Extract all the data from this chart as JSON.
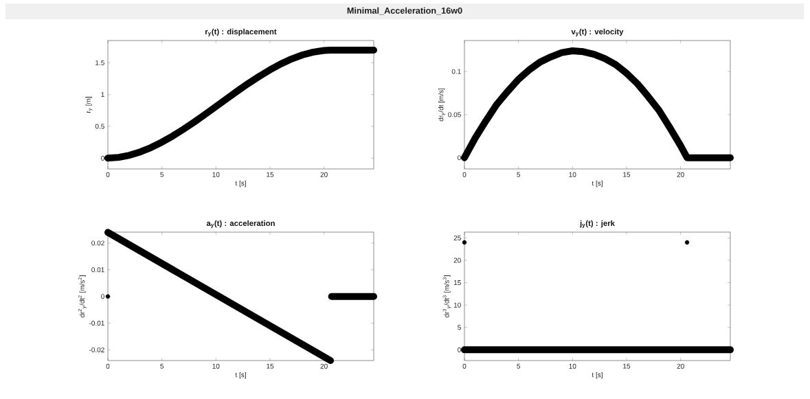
{
  "chart_data": [
    {
      "type": "other",
      "title": "Minimal_Acceleration_16w0"
    },
    {
      "type": "line",
      "title": "r$_{y}$(t) : displacement",
      "xlabel": "t [s]",
      "ylabel": "r$_{y}$ [m]",
      "xlim": [
        0,
        24.6
      ],
      "ylim": [
        -0.17,
        1.85
      ],
      "xticks": [
        0,
        5,
        10,
        15,
        20
      ],
      "yticks": [
        0,
        0.5,
        1,
        1.5
      ],
      "series": [
        {
          "color": "#000000",
          "x": [
            0,
            1,
            2,
            3,
            4,
            5,
            6,
            7,
            8,
            9,
            10,
            11,
            12,
            13,
            14,
            15,
            16,
            17,
            18,
            19,
            20,
            20.6,
            24.6
          ],
          "values": [
            0,
            0.012,
            0.045,
            0.098,
            0.167,
            0.252,
            0.348,
            0.455,
            0.569,
            0.689,
            0.812,
            0.935,
            1.057,
            1.175,
            1.286,
            1.389,
            1.481,
            1.56,
            1.623,
            1.668,
            1.693,
            1.698,
            1.698
          ]
        }
      ]
    },
    {
      "type": "line",
      "title": "v$_{y}$(t) : velocity",
      "xlabel": "t [s]",
      "ylabel": "dr$_{y}$/dt [m/s]",
      "xlim": [
        0,
        24.6
      ],
      "ylim": [
        -0.013,
        0.136
      ],
      "xticks": [
        0,
        5,
        10,
        15,
        20
      ],
      "yticks": [
        0,
        0.05,
        0.1
      ],
      "series": [
        {
          "color": "#000000",
          "x": [
            0,
            1,
            2,
            3,
            4,
            5,
            6,
            7,
            8,
            9,
            10,
            11,
            12,
            13,
            14,
            15,
            16,
            17,
            18,
            19,
            20,
            20.6,
            24.6
          ],
          "values": [
            0,
            0.023,
            0.043,
            0.062,
            0.077,
            0.091,
            0.102,
            0.111,
            0.117,
            0.122,
            0.124,
            0.123,
            0.12,
            0.115,
            0.108,
            0.098,
            0.086,
            0.071,
            0.055,
            0.035,
            0.014,
            0,
            0
          ]
        }
      ]
    },
    {
      "type": "line",
      "title": "a$_{y}$(t) : acceleration",
      "xlabel": "t [s]",
      "ylabel": "dr$^{2}$$_{y}$/dt$^{2}$ [m/s$^{2}$]",
      "xlim": [
        0,
        24.6
      ],
      "ylim": [
        -0.024,
        0.0241
      ],
      "xticks": [
        0,
        5,
        10,
        15,
        20
      ],
      "yticks": [
        -0.02,
        -0.01,
        0,
        0.01,
        0.02
      ],
      "series": [
        {
          "color": "#000000",
          "x": [
            0,
            20.6,
            20.65,
            20.7,
            24.6
          ],
          "values": [
            0.024,
            -0.024,
            null,
            0,
            0
          ]
        },
        {
          "type": "scatter",
          "marker": "circle",
          "color": "#000000",
          "x": [
            0
          ],
          "values": [
            0
          ]
        }
      ]
    },
    {
      "type": "line",
      "title": "j$_{y}$(t) : jerk",
      "xlabel": "t [s]",
      "ylabel": "dr$^{3}$$_{y}$/dt$^{3}$ [m/s$^{3}$]",
      "xlim": [
        0,
        24.6
      ],
      "ylim": [
        -2.4,
        26.3
      ],
      "xticks": [
        0,
        5,
        10,
        15,
        20
      ],
      "yticks": [
        0,
        5,
        10,
        15,
        20,
        25
      ],
      "series": [
        {
          "color": "#000000",
          "x": [
            0,
            24.6
          ],
          "values": [
            0,
            0
          ]
        },
        {
          "type": "scatter",
          "marker": "circle",
          "color": "#000000",
          "x": [
            0,
            20.6
          ],
          "values": [
            24,
            24
          ]
        }
      ]
    }
  ]
}
